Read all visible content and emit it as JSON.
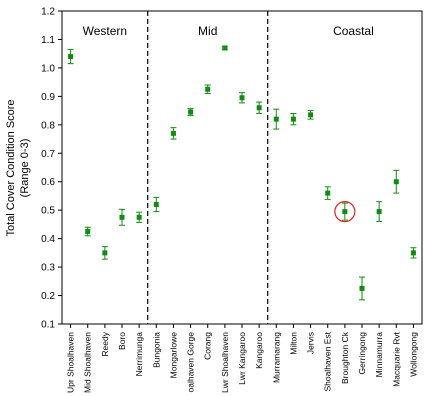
{
  "chart_data": {
    "type": "scatter",
    "title": "",
    "xlabel": "",
    "ylabel": "Total Cover Condition Score",
    "ylabel2": "(Range 0-3)",
    "ylim": [
      0.1,
      1.2
    ],
    "yticks": [
      "0.1",
      "0.2",
      "0.3",
      "0.4",
      "0.5",
      "0.6",
      "0.7",
      "0.8",
      "0.9",
      "1.0",
      "1.1",
      "1.2"
    ],
    "grid": false,
    "marker_color": "#138a13",
    "highlight_color": "#e02020",
    "regions": [
      {
        "label": "Western",
        "start": 0,
        "end": 4
      },
      {
        "label": "Mid",
        "start": 5,
        "end": 11
      },
      {
        "label": "Coastal",
        "start": 12,
        "end": 21
      }
    ],
    "dividers_after": [
      4,
      11
    ],
    "categories": [
      "Upr Shoalhaven",
      "Mid Shoalhaven",
      "Reedy",
      "Boro",
      "Nerrimunga",
      "Bungonia",
      "Mongarlowe",
      "oalhaven Gorge",
      "Corang",
      "Lwr Shoalhaven",
      "Lwr Kangaroo",
      "Kangaroo",
      "Murramarang",
      "Milton",
      "Jervis",
      "Shoalhaven Est",
      "Broughton Ck",
      "Gerringong",
      "Minnamurra",
      "Macquarie Rvt",
      "Wollongong"
    ],
    "values": [
      1.04,
      0.425,
      0.35,
      0.475,
      0.475,
      0.52,
      0.77,
      0.845,
      0.925,
      1.07,
      0.895,
      0.86,
      0.82,
      0.82,
      0.835,
      0.56,
      0.495,
      0.225,
      0.495,
      0.6,
      0.35
    ],
    "errors": [
      0.025,
      0.015,
      0.022,
      0.028,
      0.018,
      0.025,
      0.02,
      0.012,
      0.015,
      0.006,
      0.018,
      0.02,
      0.035,
      0.02,
      0.015,
      0.022,
      0.03,
      0.04,
      0.035,
      0.04,
      0.018
    ],
    "highlighted_index": 16
  }
}
